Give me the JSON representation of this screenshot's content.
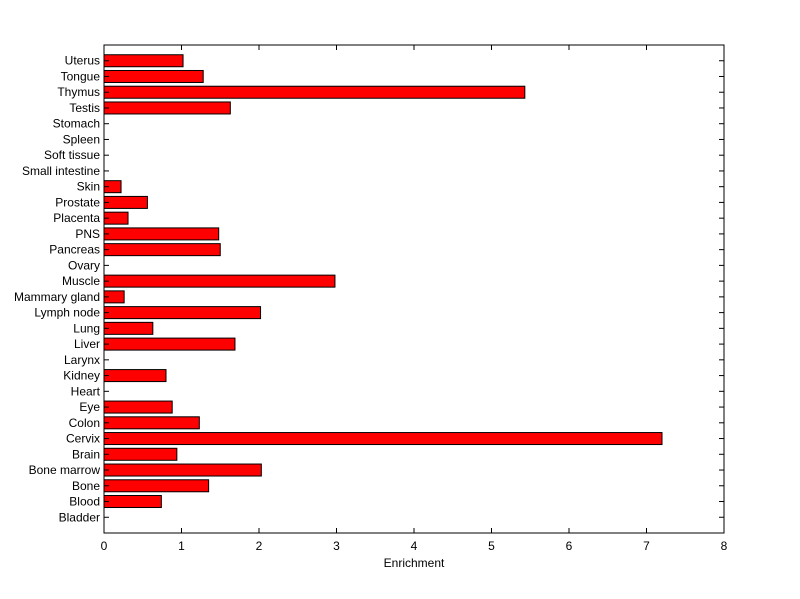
{
  "chart_data": {
    "type": "bar",
    "orientation": "horizontal",
    "categories": [
      "Uterus",
      "Tongue",
      "Thymus",
      "Testis",
      "Stomach",
      "Spleen",
      "Soft tissue",
      "Small intestine",
      "Skin",
      "Prostate",
      "Placenta",
      "PNS",
      "Pancreas",
      "Ovary",
      "Muscle",
      "Mammary gland",
      "Lymph node",
      "Lung",
      "Liver",
      "Larynx",
      "Kidney",
      "Heart",
      "Eye",
      "Colon",
      "Cervix",
      "Brain",
      "Bone marrow",
      "Bone",
      "Blood",
      "Bladder"
    ],
    "values": [
      1.02,
      1.28,
      5.43,
      1.63,
      0,
      0,
      0,
      0,
      0.22,
      0.56,
      0.31,
      1.48,
      1.5,
      0,
      2.98,
      0.26,
      2.02,
      0.63,
      1.69,
      0,
      0.8,
      0,
      0.88,
      1.23,
      7.2,
      0.94,
      2.03,
      1.35,
      0.74,
      0
    ],
    "xlabel": "Enrichment",
    "ylabel": "",
    "xlim": [
      0,
      8
    ],
    "xticks": [
      0,
      1,
      2,
      3,
      4,
      5,
      6,
      7,
      8
    ],
    "grid": false,
    "bar_color": "#ff0000",
    "bar_edge_color": "#000000"
  }
}
